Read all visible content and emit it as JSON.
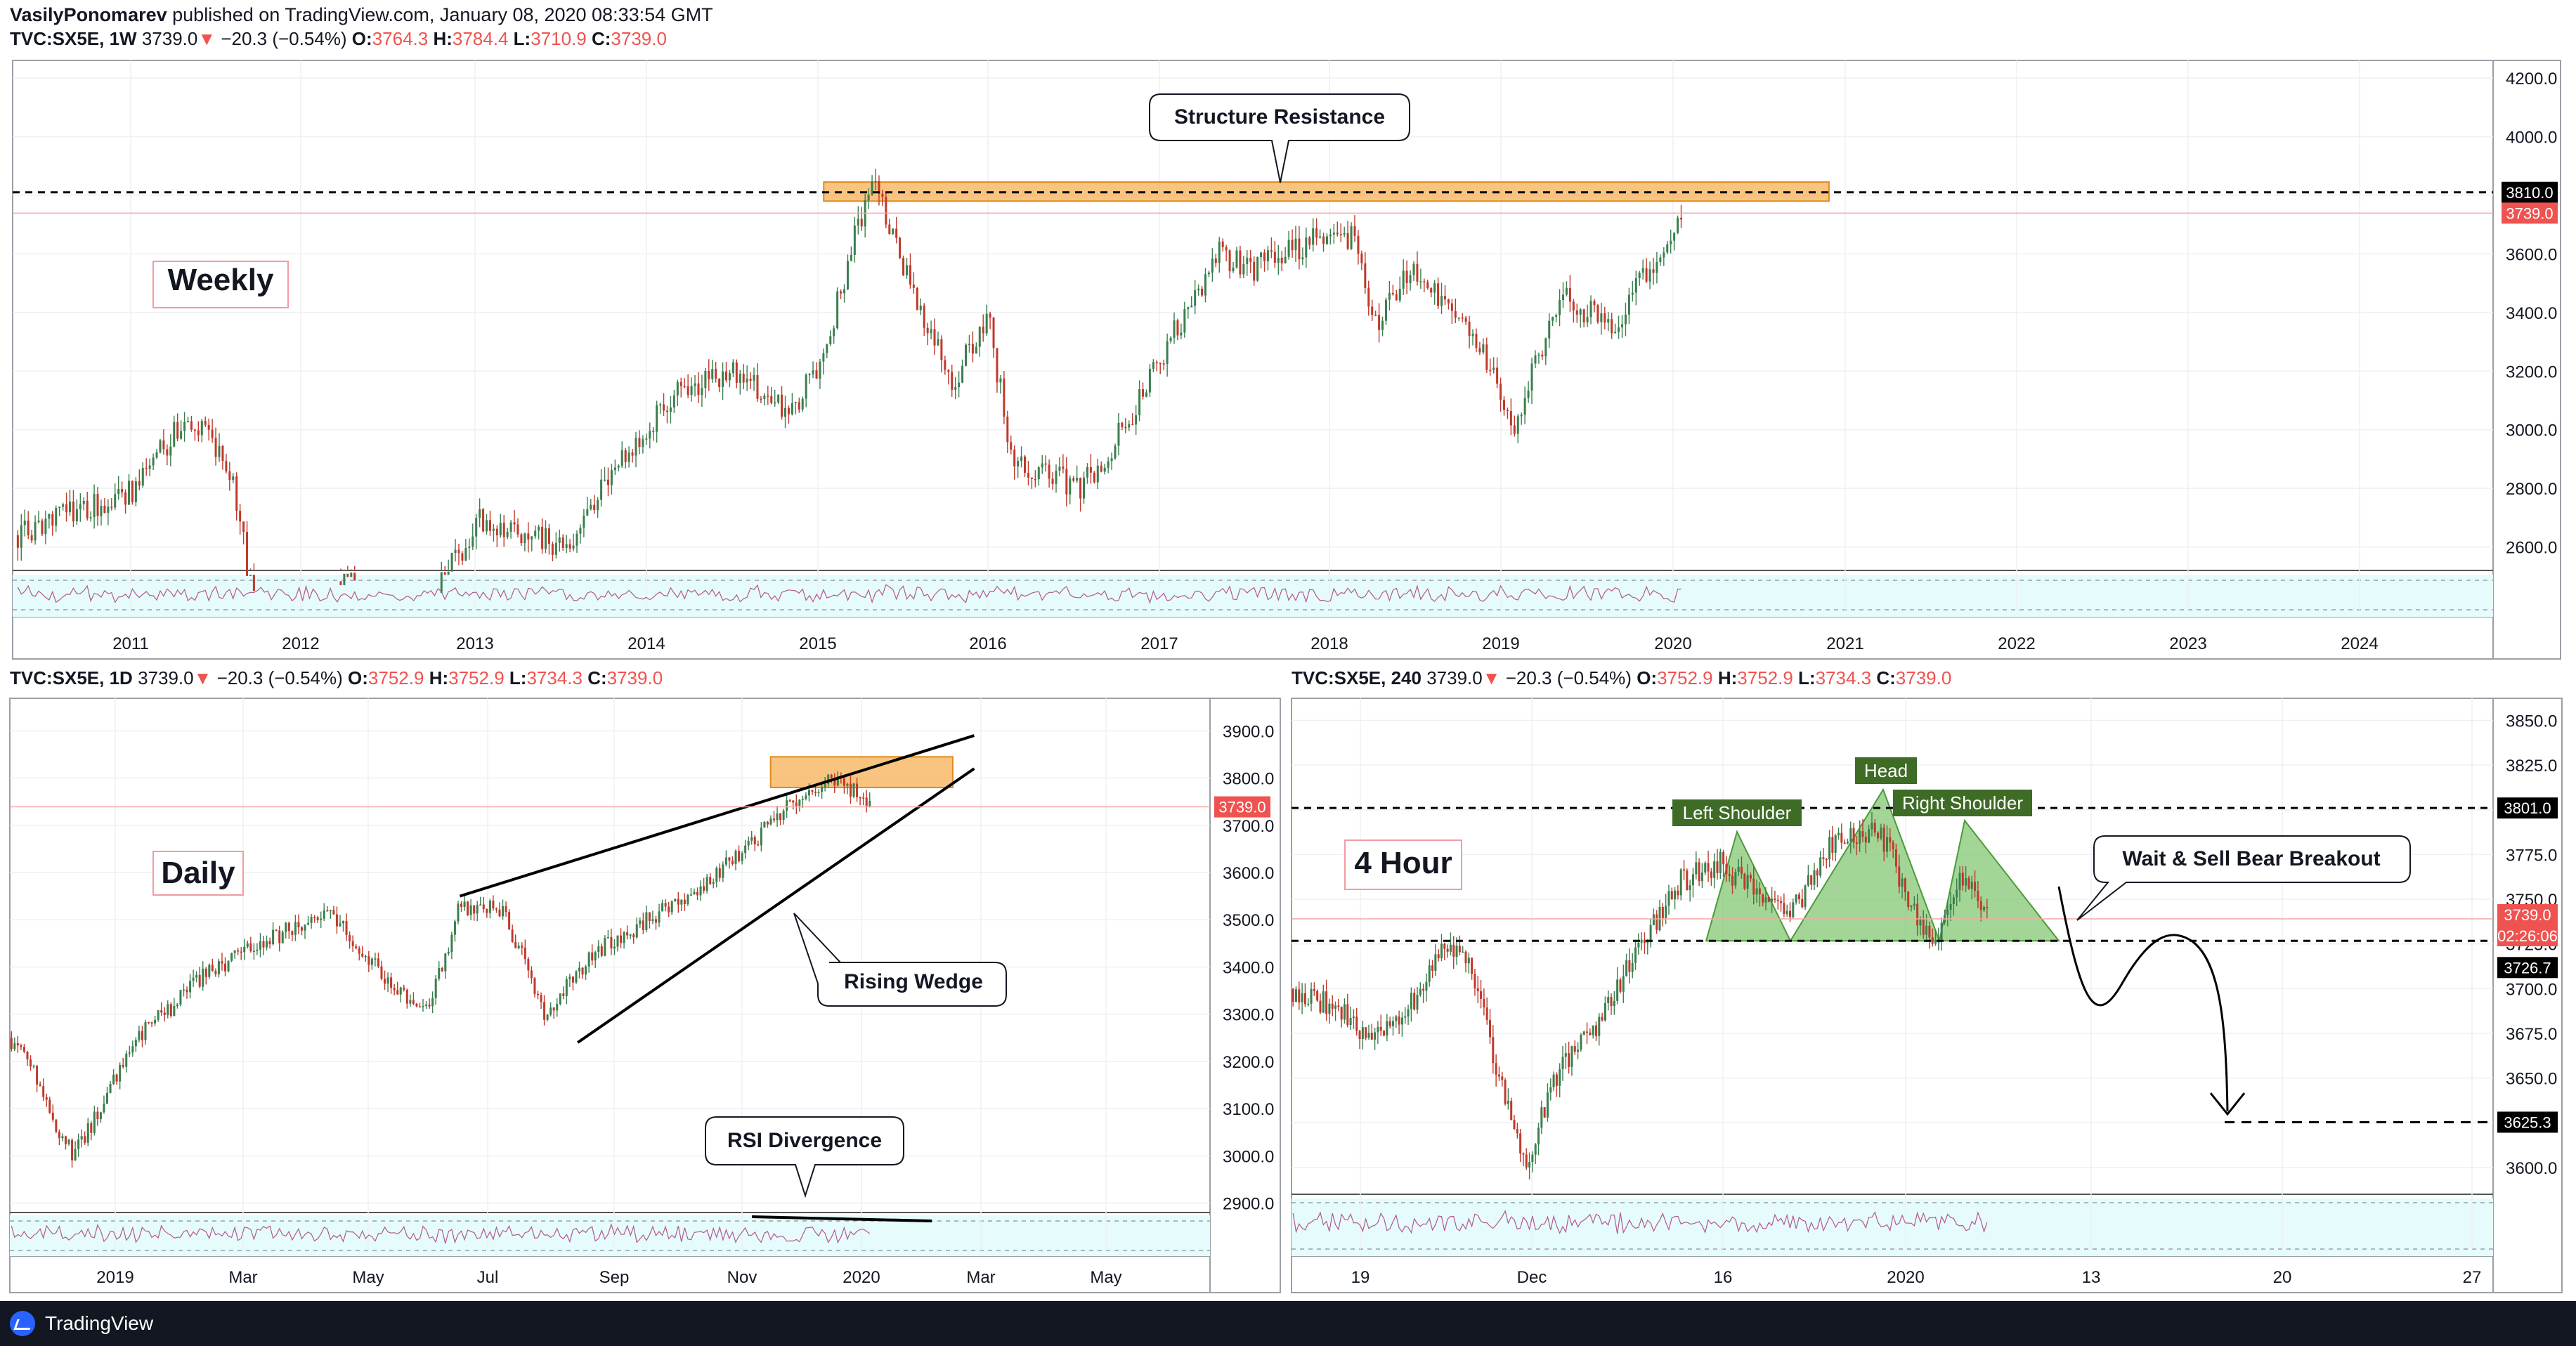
{
  "publisher": {
    "author": "VasilyPonomarev",
    "text": "published on TradingView.com, January 08, 2020 08:33:54 GMT"
  },
  "panels": {
    "weekly": {
      "header": {
        "symbol": "TVC:SX5E, 1W",
        "price": "3739.0",
        "arrow": "▼",
        "change": "−20.3 (−0.54%)",
        "o_label": "O:",
        "o": "3764.3",
        "h_label": "H:",
        "h": "3784.4",
        "l_label": "L:",
        "l": "3710.9",
        "c_label": "C:",
        "c": "3739.0"
      },
      "label": "Weekly",
      "annotation": "Structure Resistance",
      "tag_level": "3810.0",
      "tag_price": "3739.0"
    },
    "daily": {
      "header": {
        "symbol": "TVC:SX5E, 1D",
        "price": "3739.0",
        "arrow": "▼",
        "change": "−20.3 (−0.54%)",
        "o_label": "O:",
        "o": "3752.9",
        "h_label": "H:",
        "h": "3752.9",
        "l_label": "L:",
        "l": "3734.3",
        "c_label": "C:",
        "c": "3739.0"
      },
      "label": "Daily",
      "wedge_label": "Rising Wedge",
      "rsi_label": "RSI Divergence",
      "tag_price": "3739.0"
    },
    "h4": {
      "header": {
        "symbol": "TVC:SX5E, 240",
        "price": "3739.0",
        "arrow": "▼",
        "change": "−20.3 (−0.54%)",
        "o_label": "O:",
        "o": "3752.9",
        "h_label": "H:",
        "h": "3752.9",
        "l_label": "L:",
        "l": "3734.3",
        "c_label": "C:",
        "c": "3739.0"
      },
      "label": "4 Hour",
      "left_shoulder": "Left Shoulder",
      "head": "Head",
      "right_shoulder": "Right Shoulder",
      "call": "Wait & Sell Bear Breakout",
      "tag_resistance": "3801.0",
      "tag_price": "3739.0",
      "tag_timer": "02:26:06",
      "tag_neckline": "3726.7",
      "tag_target": "3625.3"
    }
  },
  "chart_data": [
    {
      "type": "candlestick",
      "timeframe": "1W",
      "ylim": [
        2520,
        4260
      ],
      "y_ticks": [
        "4200.0",
        "4000.0",
        "3800.0",
        "3600.0",
        "3400.0",
        "3200.0",
        "3000.0",
        "2800.0",
        "2600.0"
      ],
      "x_ticks": [
        "2011",
        "2012",
        "2013",
        "2014",
        "2015",
        "2016",
        "2017",
        "2018",
        "2019",
        "2020",
        "2021",
        "2022",
        "2023",
        "2024"
      ],
      "path": [
        [
          2010.3,
          2640
        ],
        [
          2011.0,
          2800
        ],
        [
          2011.3,
          3060
        ],
        [
          2011.55,
          2850
        ],
        [
          2011.75,
          2200
        ],
        [
          2012.25,
          2500
        ],
        [
          2012.6,
          2300
        ],
        [
          2013.0,
          2700
        ],
        [
          2013.5,
          2600
        ],
        [
          2013.8,
          2900
        ],
        [
          2014.2,
          3150
        ],
        [
          2014.5,
          3200
        ],
        [
          2014.8,
          3050
        ],
        [
          2015.0,
          3250
        ],
        [
          2015.2,
          3700
        ],
        [
          2015.3,
          3830
        ],
        [
          2015.5,
          3500
        ],
        [
          2015.75,
          3150
        ],
        [
          2015.95,
          3400
        ],
        [
          2016.1,
          2900
        ],
        [
          2016.5,
          2800
        ],
        [
          2016.8,
          3050
        ],
        [
          2017.0,
          3290
        ],
        [
          2017.3,
          3600
        ],
        [
          2017.5,
          3550
        ],
        [
          2017.85,
          3650
        ],
        [
          2018.1,
          3650
        ],
        [
          2018.2,
          3350
        ],
        [
          2018.4,
          3550
        ],
        [
          2018.6,
          3450
        ],
        [
          2018.9,
          3200
        ],
        [
          2019.0,
          3000
        ],
        [
          2019.3,
          3450
        ],
        [
          2019.6,
          3350
        ],
        [
          2019.9,
          3650
        ],
        [
          2020.0,
          3739
        ]
      ],
      "resistance_level": 3810,
      "last_price": 3739,
      "resistance_zone": {
        "x": [
          2015.0,
          2020.85
        ],
        "y": [
          3780,
          3845
        ]
      }
    },
    {
      "type": "candlestick",
      "timeframe": "1D",
      "ylim": [
        2880,
        3960
      ],
      "y_ticks": [
        "3900.0",
        "3800.0",
        "3700.0",
        "3600.0",
        "3500.0",
        "3400.0",
        "3300.0",
        "3200.0",
        "3100.0",
        "3000.0",
        "2900.0"
      ],
      "x_ticks": [
        "2019",
        "Mar",
        "May",
        "Jul",
        "Sep",
        "Nov",
        "2020",
        "Mar",
        "May"
      ],
      "path": [
        [
          -30,
          3250
        ],
        [
          -20,
          3200
        ],
        [
          -10,
          3080
        ],
        [
          0,
          3000
        ],
        [
          30,
          3250
        ],
        [
          60,
          3380
        ],
        [
          100,
          3480
        ],
        [
          120,
          3520
        ],
        [
          150,
          3350
        ],
        [
          165,
          3300
        ],
        [
          180,
          3530
        ],
        [
          200,
          3520
        ],
        [
          220,
          3300
        ],
        [
          240,
          3420
        ],
        [
          260,
          3480
        ],
        [
          280,
          3530
        ],
        [
          300,
          3600
        ],
        [
          320,
          3680
        ],
        [
          340,
          3770
        ],
        [
          355,
          3800
        ],
        [
          372,
          3739
        ]
      ],
      "last_price": 3739,
      "wedge": {
        "upper": [
          [
            180,
            3550
          ],
          [
            420,
            3890
          ]
        ],
        "lower": [
          [
            235,
            3240
          ],
          [
            420,
            3820
          ]
        ]
      },
      "resistance_zone": {
        "x": [
          325,
          410
        ],
        "y": [
          3780,
          3845
        ]
      }
    },
    {
      "type": "candlestick",
      "timeframe": "240",
      "ylim": [
        3585,
        3860
      ],
      "y_ticks": [
        "3850.0",
        "3825.0",
        "3800.0",
        "3775.0",
        "3750.0",
        "3725.0",
        "3700.0",
        "3675.0",
        "3650.0",
        "3625.0",
        "3600.0"
      ],
      "x_ticks": [
        "19",
        "Dec",
        "16",
        "2020",
        "13",
        "20",
        "27"
      ],
      "path": [
        [
          0,
          3700
        ],
        [
          15,
          3690
        ],
        [
          30,
          3670
        ],
        [
          45,
          3695
        ],
        [
          55,
          3720
        ],
        [
          65,
          3715
        ],
        [
          75,
          3650
        ],
        [
          85,
          3600
        ],
        [
          95,
          3650
        ],
        [
          110,
          3680
        ],
        [
          125,
          3720
        ],
        [
          140,
          3760
        ],
        [
          155,
          3770
        ],
        [
          170,
          3750
        ],
        [
          180,
          3740
        ],
        [
          195,
          3780
        ],
        [
          205,
          3785
        ],
        [
          212,
          3790
        ],
        [
          225,
          3745
        ],
        [
          233,
          3725
        ],
        [
          243,
          3765
        ],
        [
          252,
          3739
        ]
      ],
      "pattern": "head-and-shoulders",
      "resistance_level": 3801,
      "neckline": 3726.7,
      "last_price": 3739,
      "target_level": 3625.3
    }
  ],
  "colors": {
    "up": "#3a7f4e",
    "down": "#c0392b",
    "zone": "#f7b055",
    "pattern": "#7cc46a",
    "rsi_band": "#e6fbfb",
    "tag_price": "#ef5350"
  }
}
